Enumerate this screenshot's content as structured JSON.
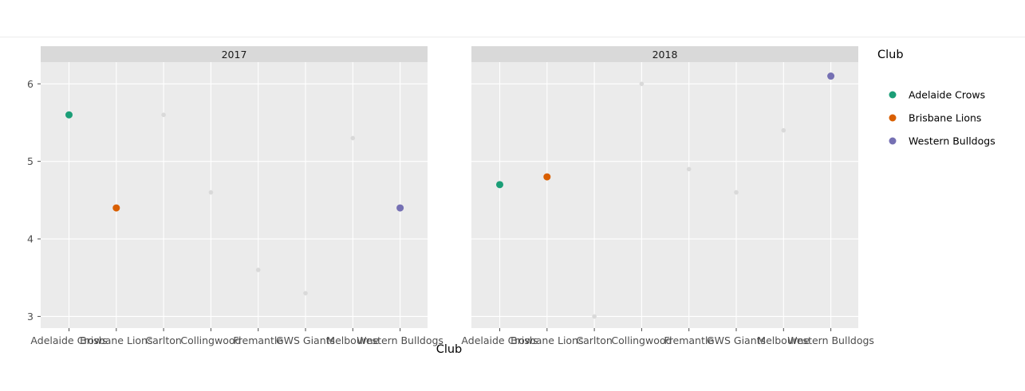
{
  "chart_data": {
    "type": "scatter",
    "xlabel": "Club",
    "categories": [
      "Adelaide Crows",
      "Brisbane Lions",
      "Carlton",
      "Collingwood",
      "Fremantle",
      "GWS Giants",
      "Melbourne",
      "Western Bulldogs"
    ],
    "ylim": [
      2.85,
      6.28
    ],
    "yticks": [
      3,
      4,
      5,
      6
    ],
    "grid": true,
    "legend": {
      "title": "Club",
      "position": "right",
      "entries": [
        {
          "name": "Adelaide Crows",
          "color": "#1b9e77"
        },
        {
          "name": "Brisbane Lions",
          "color": "#d95f02"
        },
        {
          "name": "Western Bulldogs",
          "color": "#7570b3"
        }
      ]
    },
    "muted_color": "#d9d9d9",
    "panels": [
      {
        "facet": "2017",
        "points": [
          {
            "club": "Adelaide Crows",
            "y": 5.6
          },
          {
            "club": "Brisbane Lions",
            "y": 4.4
          },
          {
            "club": "Carlton",
            "y": 5.6
          },
          {
            "club": "Collingwood",
            "y": 4.6
          },
          {
            "club": "Fremantle",
            "y": 3.6
          },
          {
            "club": "GWS Giants",
            "y": 3.3
          },
          {
            "club": "Melbourne",
            "y": 5.3
          },
          {
            "club": "Western Bulldogs",
            "y": 4.4
          }
        ]
      },
      {
        "facet": "2018",
        "points": [
          {
            "club": "Adelaide Crows",
            "y": 4.7
          },
          {
            "club": "Brisbane Lions",
            "y": 4.8
          },
          {
            "club": "Carlton",
            "y": 3.0
          },
          {
            "club": "Collingwood",
            "y": 6.0
          },
          {
            "club": "Fremantle",
            "y": 4.9
          },
          {
            "club": "GWS Giants",
            "y": 4.6
          },
          {
            "club": "Melbourne",
            "y": 5.4
          },
          {
            "club": "Western Bulldogs",
            "y": 6.1
          }
        ]
      }
    ]
  }
}
